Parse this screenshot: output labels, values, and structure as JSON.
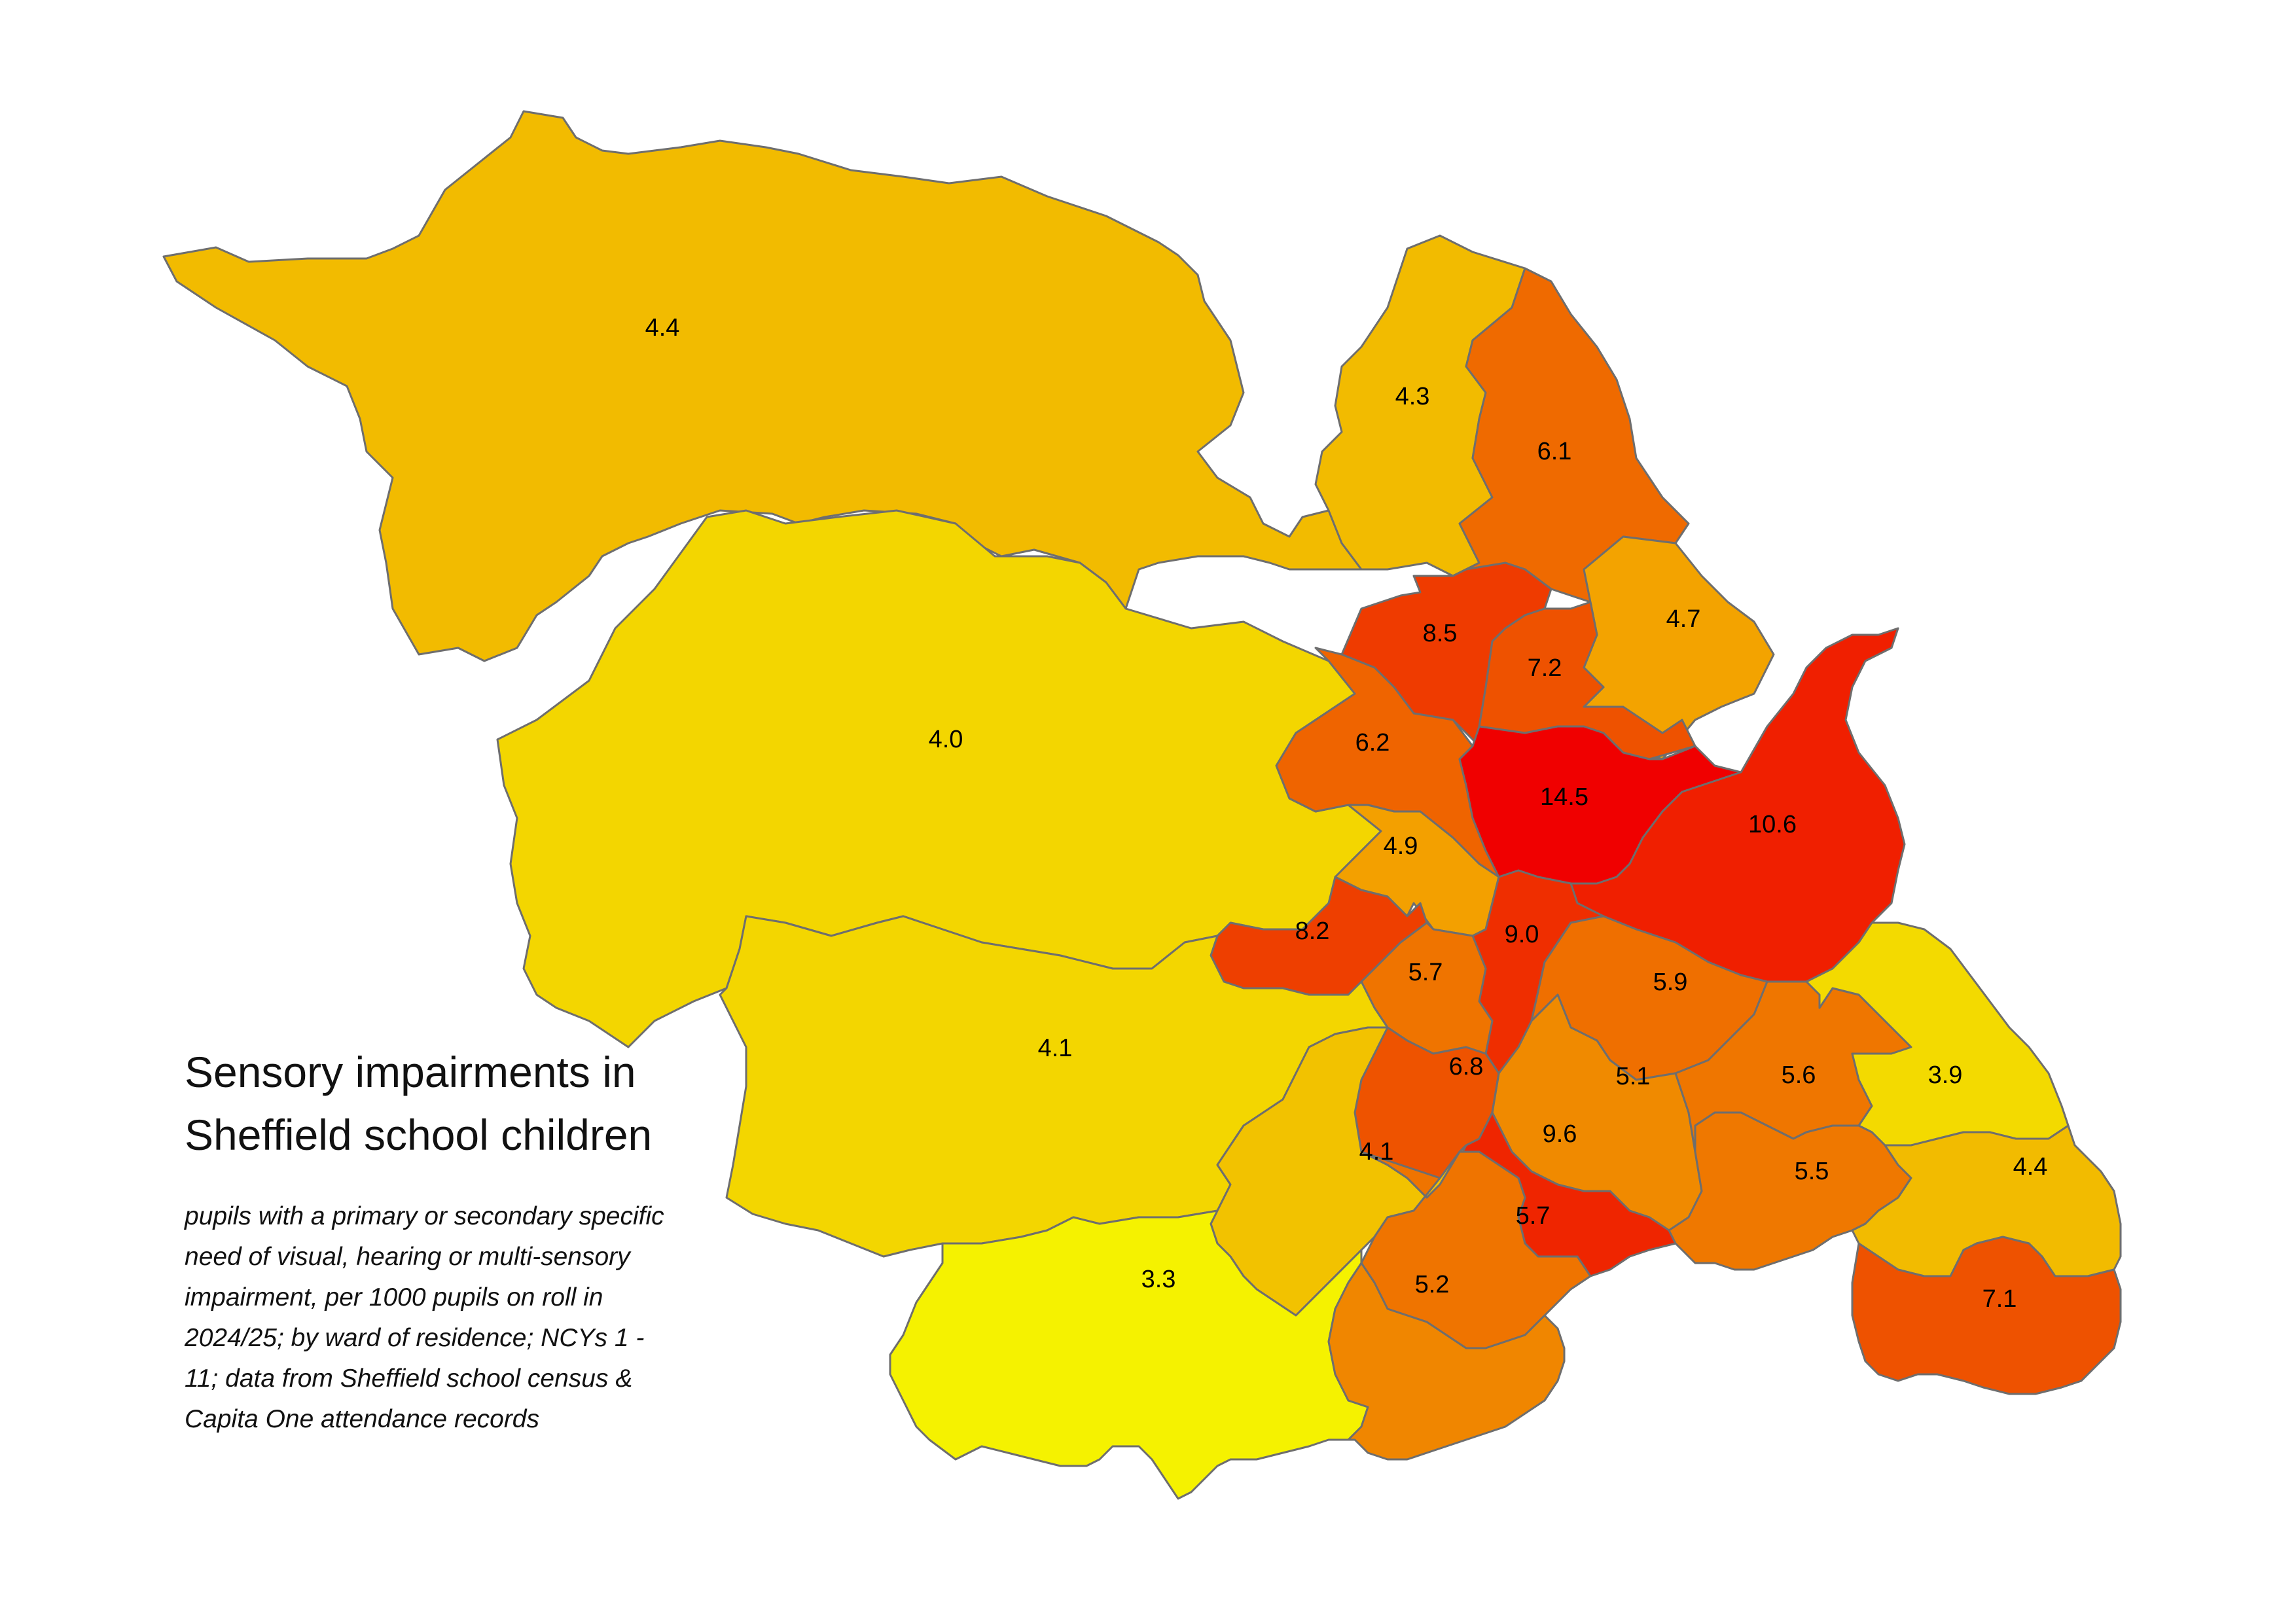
{
  "title": {
    "line1": "Sensory impairments in",
    "line2": "Sheffield school children"
  },
  "subtitle_lines": [
    "pupils with a primary or secondary specific",
    "need of visual, hearing or multi-sensory",
    "impairment, per 1000 pupils on roll in",
    "2024/25; by ward of residence; NCYs 1 -",
    "11; data from Sheffield school census &",
    "Capita One attendance records"
  ],
  "colors": {
    "lowest": "#f5f200",
    "low": "#f3d600",
    "mid_low": "#f2bb00",
    "mid": "#f3a000",
    "mid_high": "#f08000",
    "high": "#ef6400",
    "higher": "#ee4800",
    "very_high": "#ef2a00",
    "highest": "#f00000"
  },
  "wards": [
    {
      "id": "w1",
      "value": "4.4",
      "color": "#f2bb00"
    },
    {
      "id": "w2",
      "value": "4.3",
      "color": "#f2bb00"
    },
    {
      "id": "w3",
      "value": "6.1",
      "color": "#ef6a00"
    },
    {
      "id": "w4",
      "value": "4.0",
      "color": "#f3d600"
    },
    {
      "id": "w5",
      "value": "4.7",
      "color": "#f3a300"
    },
    {
      "id": "w6",
      "value": "8.5",
      "color": "#ef3b00"
    },
    {
      "id": "w7",
      "value": "7.2",
      "color": "#ee5200"
    },
    {
      "id": "w8",
      "value": "6.2",
      "color": "#ef6400"
    },
    {
      "id": "w9",
      "value": "14.5",
      "color": "#f00000"
    },
    {
      "id": "w10",
      "value": "10.6",
      "color": "#f01f00"
    },
    {
      "id": "w11",
      "value": "4.9",
      "color": "#f3a000"
    },
    {
      "id": "w12",
      "value": "8.2",
      "color": "#ee3f00"
    },
    {
      "id": "w13",
      "value": "9.0",
      "color": "#ef2e00"
    },
    {
      "id": "w14",
      "value": "5.7",
      "color": "#ef7400"
    },
    {
      "id": "w15",
      "value": "5.9",
      "color": "#ef6f00"
    },
    {
      "id": "w16",
      "value": "4.1",
      "color": "#f3d600"
    },
    {
      "id": "w17",
      "value": "6.8",
      "color": "#ee5300"
    },
    {
      "id": "w18",
      "value": "5.1",
      "color": "#f08a00"
    },
    {
      "id": "w19",
      "value": "5.6",
      "color": "#ef7600"
    },
    {
      "id": "w20",
      "value": "3.9",
      "color": "#f3da00"
    },
    {
      "id": "w21",
      "value": "9.6",
      "color": "#ef2500"
    },
    {
      "id": "w22",
      "value": "4.1",
      "color": "#f2c200"
    },
    {
      "id": "w23",
      "value": "5.5",
      "color": "#ef7800"
    },
    {
      "id": "w24",
      "value": "4.4",
      "color": "#f2bb00"
    },
    {
      "id": "w25",
      "value": "5.7",
      "color": "#ef7400"
    },
    {
      "id": "w26",
      "value": "3.3",
      "color": "#f5f200"
    },
    {
      "id": "w27",
      "value": "5.2",
      "color": "#f08600"
    },
    {
      "id": "w28",
      "value": "7.1",
      "color": "#ee5200"
    }
  ]
}
